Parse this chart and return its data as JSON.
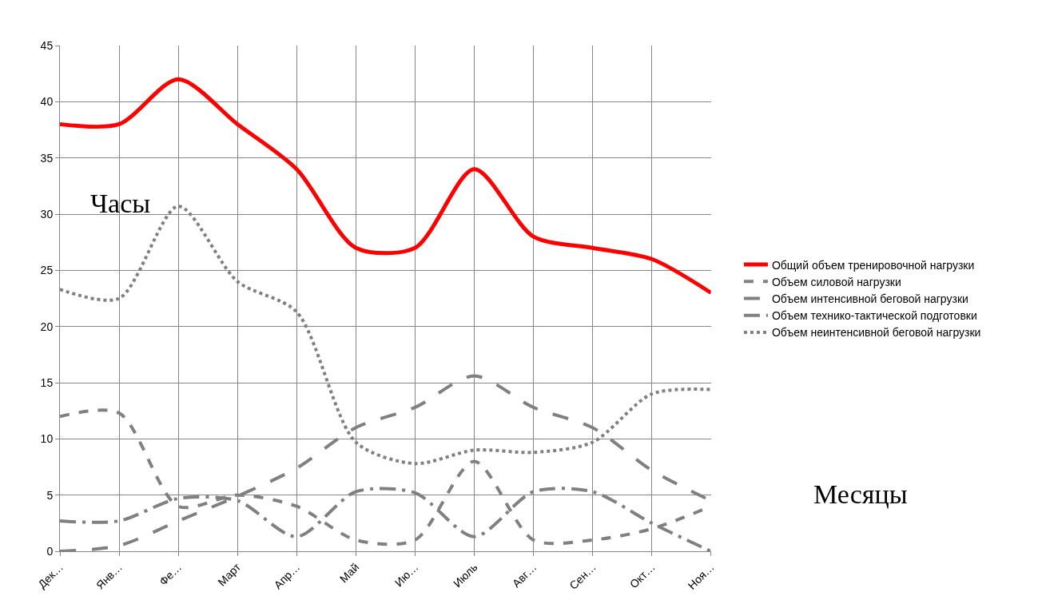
{
  "chart_data": {
    "type": "line",
    "categories": [
      "Дек…",
      "Янв…",
      "Фе…",
      "Март",
      "Апр…",
      "Май",
      "Ию…",
      "Июль",
      "Авг…",
      "Сен…",
      "Окт…",
      "Ноя…"
    ],
    "series": [
      {
        "name": "Общий объем тренировочной нагрузки",
        "color": "#ff0000",
        "line_style": "solid",
        "values": [
          38,
          38,
          42,
          38,
          34,
          27,
          27,
          34,
          28,
          27,
          26,
          23
        ]
      },
      {
        "name": "Объем силовой нагрузки",
        "color": "#808080",
        "line_style": "dashed",
        "values": [
          12,
          12.3,
          4,
          5,
          4,
          1,
          1,
          8,
          1,
          1,
          2,
          4
        ]
      },
      {
        "name": "Объем интенсивной беговой нагрузки",
        "color": "#808080",
        "line_style": "longdash",
        "values": [
          0,
          0.5,
          2.7,
          4.9,
          7.4,
          11,
          12.8,
          15.6,
          12.8,
          11,
          7.2,
          4.5
        ]
      },
      {
        "name": "Объем технико-тактической подготовки",
        "color": "#808080",
        "line_style": "dashdot",
        "values": [
          2.7,
          2.7,
          4.7,
          4.5,
          1.3,
          5.3,
          5.2,
          1.3,
          5.3,
          5.3,
          2.5,
          0
        ]
      },
      {
        "name": "Объем неинтенсивной беговой нагрузки",
        "color": "#808080",
        "line_style": "dotted",
        "values": [
          23.3,
          22.5,
          30.7,
          24,
          21.3,
          9.7,
          7.8,
          9,
          8.8,
          9.7,
          14,
          14.4
        ]
      }
    ],
    "ylim": [
      0,
      45
    ],
    "yticks": [
      0,
      5,
      10,
      15,
      20,
      25,
      30,
      35,
      40,
      45
    ],
    "grid": true,
    "legend": "right",
    "annotations": [
      "Часы",
      "Месяцы"
    ]
  }
}
